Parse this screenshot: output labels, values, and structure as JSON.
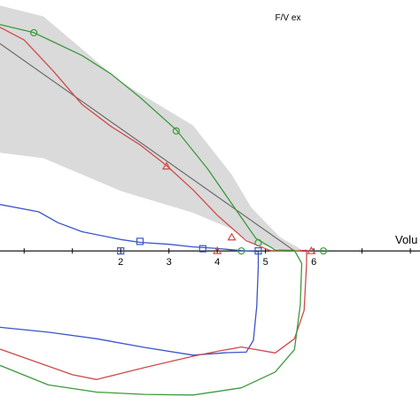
{
  "chart_data": {
    "type": "line",
    "title": "F/V ex",
    "xlabel": "Volu",
    "ylabel": "",
    "xlim": [
      -0.5,
      8.2
    ],
    "ylim": [
      -6.2,
      9.2
    ],
    "grid": false,
    "legend": "none",
    "x_ticks": [
      2,
      3,
      4,
      5,
      6
    ],
    "colors": {
      "axis": "#000000",
      "band": "#d3d3d3",
      "predicted": "#6e6e6e",
      "blue": "#3a55c8",
      "red": "#d04a4a",
      "green": "#3c9a3c"
    },
    "band": {
      "x": [
        -0.5,
        0.4,
        2.0,
        3.5,
        4.3,
        4.7,
        5.3,
        5.8
      ],
      "upper": [
        9.0,
        8.6,
        6.2,
        4.6,
        2.8,
        1.6,
        0.5,
        0.0
      ],
      "lower": [
        3.6,
        3.4,
        2.2,
        1.4,
        0.8,
        0.3,
        0.05,
        0.0
      ]
    },
    "predicted_line": {
      "x": [
        -0.5,
        5.6
      ],
      "y": [
        7.6,
        0.0
      ]
    },
    "series": [
      {
        "marker": "square",
        "x": [
          -0.5,
          0.3,
          0.7,
          1.2,
          2.0,
          2.4,
          3.0,
          3.5,
          4.0,
          4.5,
          4.85,
          4.85,
          4.82,
          4.75,
          4.6,
          4.2,
          3.5,
          2.5,
          1.5,
          0.5,
          -0.5
        ],
        "y": [
          1.7,
          1.4,
          1.0,
          0.7,
          0.45,
          0.35,
          0.25,
          0.12,
          0.05,
          0.0,
          0.0,
          -0.5,
          -2.0,
          -3.3,
          -3.75,
          -3.75,
          -3.8,
          -3.5,
          -3.2,
          -3.0,
          -2.8
        ],
        "markers_x": [
          2.4,
          3.7,
          4.85,
          2.0
        ],
        "markers_y": [
          0.35,
          0.08,
          0.0,
          0.0
        ]
      },
      {
        "marker": "triangle",
        "x": [
          -0.5,
          0.0,
          0.6,
          1.2,
          1.8,
          2.4,
          2.95,
          3.5,
          4.0,
          4.6,
          5.1,
          5.5,
          5.85,
          5.85,
          5.8,
          5.6,
          5.2,
          4.5,
          4.0,
          3.5,
          2.5,
          1.5,
          1.0,
          0.5,
          -0.5
        ],
        "y": [
          8.2,
          7.7,
          6.6,
          5.4,
          4.6,
          3.9,
          3.1,
          2.2,
          1.3,
          0.4,
          0.05,
          0.0,
          0.0,
          -0.5,
          -2.2,
          -3.2,
          -3.7,
          -3.5,
          -3.7,
          -3.9,
          -4.3,
          -4.7,
          -4.5,
          -4.2,
          -3.6
        ],
        "markers_x": [
          2.95,
          4.3,
          5.95,
          4.0
        ],
        "markers_y": [
          3.1,
          0.5,
          0.0,
          0.0
        ]
      },
      {
        "marker": "circle",
        "x": [
          -0.5,
          0.2,
          0.6,
          1.2,
          1.8,
          2.4,
          3.15,
          3.8,
          4.4,
          4.8,
          5.2,
          5.6,
          5.75,
          5.72,
          5.6,
          5.2,
          4.5,
          3.5,
          2.5,
          1.5,
          0.5,
          -0.5
        ],
        "y": [
          8.3,
          8.0,
          7.7,
          7.2,
          6.5,
          5.6,
          4.4,
          3.0,
          1.5,
          0.5,
          0.05,
          0.0,
          -0.5,
          -2.0,
          -3.6,
          -4.4,
          -5.0,
          -5.3,
          -5.3,
          -5.2,
          -4.9,
          -4.2
        ],
        "markers_x": [
          0.2,
          3.15,
          4.85,
          4.5,
          6.2
        ],
        "markers_y": [
          8.0,
          4.4,
          0.3,
          0.0,
          0.0
        ]
      }
    ]
  }
}
